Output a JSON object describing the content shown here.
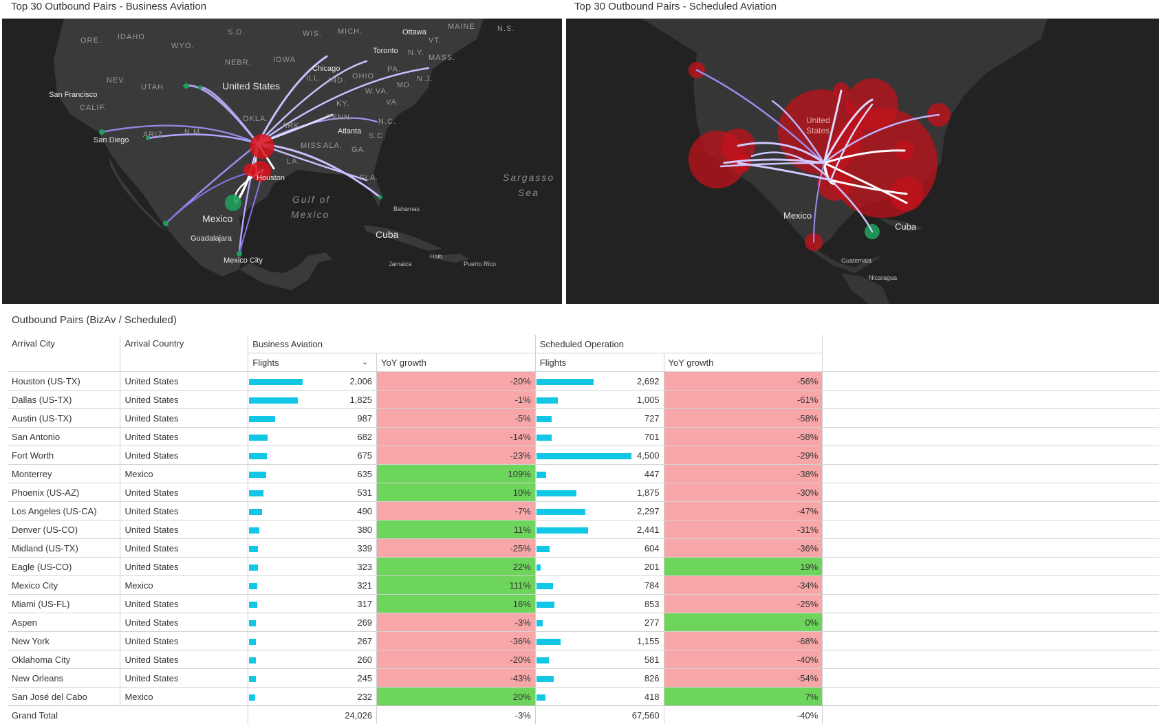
{
  "left_panel": {
    "title": "Top 30 Outbound Pairs - Business Aviation",
    "labels": {
      "san_francisco": "San Francisco",
      "san_diego": "San Diego",
      "chicago": "Chicago",
      "toronto": "Toronto",
      "ottawa": "Ottawa",
      "atlanta": "Atlanta",
      "houston": "Houston",
      "mexico": "Mexico",
      "guadalajara": "Guadalajara",
      "mexico_city": "Mexico City",
      "cuba": "Cuba",
      "bahamas": "Bahamas",
      "jamaica": "Jamaica",
      "haiti": "Haiti",
      "puerto_rico": "Puerto Rico",
      "united_states": "United States",
      "gulf_of": "Gulf of",
      "gulf_mexico": "Mexico",
      "sargasso": "Sargasso",
      "sea": "Sea",
      "ore": "ORE.",
      "idaho": "IDAHO",
      "wyo": "WYO.",
      "nev": "NEV.",
      "utah": "UTAH",
      "calif": "CALIF.",
      "sd": "S.D.",
      "nebr": "NEBR.",
      "iowa": "IOWA",
      "wis": "WIS.",
      "mich": "MICH.",
      "ill": "ILL.",
      "ind": "IND.",
      "ohio": "OHIO",
      "pa": "PA.",
      "ny": "N.Y.",
      "nj": "N.J.",
      "mass": "MASS.",
      "maine": "MAINE",
      "vt": "VT.",
      "ns": "N.S.",
      "md": "MD.",
      "va": "VA.",
      "wva": "W.VA.",
      "ky": "KY.",
      "tenn": "TENN.",
      "nc": "N.C.",
      "sc": "S.C.",
      "ga": "GA.",
      "ala": "ALA.",
      "miss": "MISS.",
      "la": "LA.",
      "ark": "ARK.",
      "okla": "OKLA.",
      "nm": "N.M.",
      "ariz": "ARIZ.",
      "fla": "FLA."
    }
  },
  "right_panel": {
    "title": "Top 30 Outbound Pairs - Scheduled Aviation",
    "labels": {
      "united": "United",
      "states": "States",
      "mexico": "Mexico",
      "cuba": "Cuba",
      "guatemala": "Guatemala",
      "nicaragua": "Nicaragua"
    }
  },
  "table": {
    "title": "Outbound Pairs (BizAv / Scheduled)",
    "headers": {
      "arrival_city": "Arrival City",
      "arrival_country": "Arrival Country",
      "business_aviation": "Business Aviation",
      "scheduled_operation": "Scheduled Operation",
      "flights": "Flights",
      "yoy_growth": "YoY growth"
    },
    "rows": [
      {
        "city": "Houston (US-TX)",
        "country": "United States",
        "biz_flights": "2,006",
        "biz_growth": "-20%",
        "sch_flights": "2,692",
        "sch_growth": "-56%"
      },
      {
        "city": "Dallas (US-TX)",
        "country": "United States",
        "biz_flights": "1,825",
        "biz_growth": "-1%",
        "sch_flights": "1,005",
        "sch_growth": "-61%"
      },
      {
        "city": "Austin (US-TX)",
        "country": "United States",
        "biz_flights": "987",
        "biz_growth": "-5%",
        "sch_flights": "727",
        "sch_growth": "-58%"
      },
      {
        "city": "San Antonio",
        "country": "United States",
        "biz_flights": "682",
        "biz_growth": "-14%",
        "sch_flights": "701",
        "sch_growth": "-58%"
      },
      {
        "city": "Fort Worth",
        "country": "United States",
        "biz_flights": "675",
        "biz_growth": "-23%",
        "sch_flights": "4,500",
        "sch_growth": "-29%"
      },
      {
        "city": "Monterrey",
        "country": "Mexico",
        "biz_flights": "635",
        "biz_growth": "109%",
        "sch_flights": "447",
        "sch_growth": "-38%"
      },
      {
        "city": "Phoenix (US-AZ)",
        "country": "United States",
        "biz_flights": "531",
        "biz_growth": "10%",
        "sch_flights": "1,875",
        "sch_growth": "-30%"
      },
      {
        "city": "Los Angeles (US-CA)",
        "country": "United States",
        "biz_flights": "490",
        "biz_growth": "-7%",
        "sch_flights": "2,297",
        "sch_growth": "-47%"
      },
      {
        "city": "Denver (US-CO)",
        "country": "United States",
        "biz_flights": "380",
        "biz_growth": "11%",
        "sch_flights": "2,441",
        "sch_growth": "-31%"
      },
      {
        "city": "Midland (US-TX)",
        "country": "United States",
        "biz_flights": "339",
        "biz_growth": "-25%",
        "sch_flights": "604",
        "sch_growth": "-36%"
      },
      {
        "city": "Eagle (US-CO)",
        "country": "United States",
        "biz_flights": "323",
        "biz_growth": "22%",
        "sch_flights": "201",
        "sch_growth": "19%"
      },
      {
        "city": "Mexico City",
        "country": "Mexico",
        "biz_flights": "321",
        "biz_growth": "111%",
        "sch_flights": "784",
        "sch_growth": "-34%"
      },
      {
        "city": "Miami (US-FL)",
        "country": "United States",
        "biz_flights": "317",
        "biz_growth": "16%",
        "sch_flights": "853",
        "sch_growth": "-25%"
      },
      {
        "city": "Aspen",
        "country": "United States",
        "biz_flights": "269",
        "biz_growth": "-3%",
        "sch_flights": "277",
        "sch_growth": "0%"
      },
      {
        "city": "New York",
        "country": "United States",
        "biz_flights": "267",
        "biz_growth": "-36%",
        "sch_flights": "1,155",
        "sch_growth": "-68%"
      },
      {
        "city": "Oklahoma City",
        "country": "United States",
        "biz_flights": "260",
        "biz_growth": "-20%",
        "sch_flights": "581",
        "sch_growth": "-40%"
      },
      {
        "city": "New Orleans",
        "country": "United States",
        "biz_flights": "245",
        "biz_growth": "-43%",
        "sch_flights": "826",
        "sch_growth": "-54%"
      },
      {
        "city": "San José del Cabo",
        "country": "Mexico",
        "biz_flights": "232",
        "biz_growth": "20%",
        "sch_flights": "418",
        "sch_growth": "7%"
      }
    ],
    "grand_total": {
      "label": "Grand Total",
      "biz_flights": "24,026",
      "biz_growth": "-3%",
      "sch_flights": "67,560",
      "sch_growth": "-40%"
    },
    "bar_max": 4500,
    "colors": {
      "bar": "#12c6e6",
      "negative": "#f7a7a7",
      "positive": "#6ed55c"
    }
  }
}
